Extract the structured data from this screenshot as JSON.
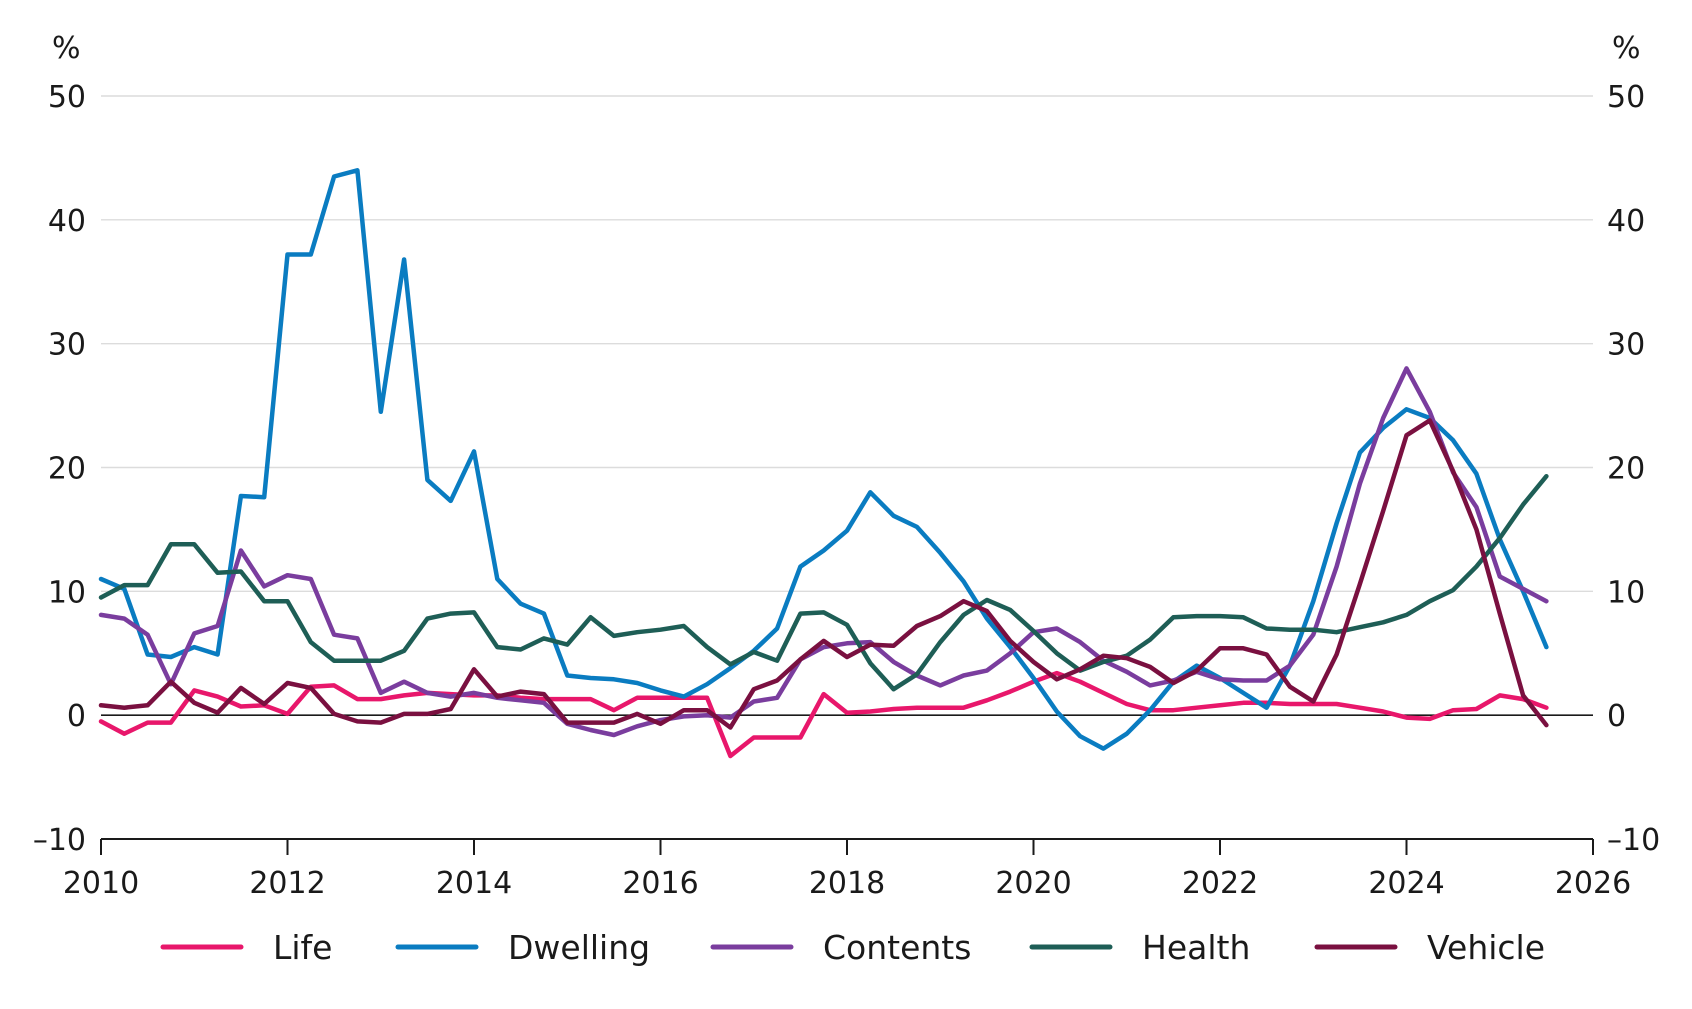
{
  "chart_data": {
    "type": "line",
    "title": "",
    "xlabel": "",
    "ylabel": "",
    "y_unit_left": "%",
    "y_unit_right": "%",
    "xlim": [
      2010,
      2026
    ],
    "ylim": [
      -10,
      50
    ],
    "x_ticks": [
      2010,
      2012,
      2014,
      2016,
      2018,
      2020,
      2022,
      2024,
      2026
    ],
    "x_tick_labels": [
      "2010",
      "2012",
      "2014",
      "2016",
      "2018",
      "2020",
      "2022",
      "2024",
      "2026"
    ],
    "y_ticks": [
      -10,
      0,
      10,
      20,
      30,
      40,
      50
    ],
    "y_tick_labels": [
      "–10",
      "0",
      "10",
      "20",
      "30",
      "40",
      "50"
    ],
    "grid": true,
    "legend_position": "bottom",
    "x": [
      2010.0,
      2010.25,
      2010.5,
      2010.75,
      2011.0,
      2011.25,
      2011.5,
      2011.75,
      2012.0,
      2012.25,
      2012.5,
      2012.75,
      2013.0,
      2013.25,
      2013.5,
      2013.75,
      2014.0,
      2014.25,
      2014.5,
      2014.75,
      2015.0,
      2015.25,
      2015.5,
      2015.75,
      2016.0,
      2016.25,
      2016.5,
      2016.75,
      2017.0,
      2017.25,
      2017.5,
      2017.75,
      2018.0,
      2018.25,
      2018.5,
      2018.75,
      2019.0,
      2019.25,
      2019.5,
      2019.75,
      2020.0,
      2020.25,
      2020.5,
      2020.75,
      2021.0,
      2021.25,
      2021.5,
      2021.75,
      2022.0,
      2022.25,
      2022.5,
      2022.75,
      2023.0,
      2023.25,
      2023.5,
      2023.75,
      2024.0,
      2024.25,
      2024.5,
      2024.75,
      2025.0,
      2025.25,
      2025.5
    ],
    "series": [
      {
        "name": "Life",
        "color": "#e8176b",
        "values": [
          -0.5,
          -1.5,
          -0.6,
          -0.6,
          2.0,
          1.5,
          0.7,
          0.8,
          0.1,
          2.3,
          2.4,
          1.3,
          1.3,
          1.6,
          1.8,
          1.7,
          1.6,
          1.6,
          1.4,
          1.3,
          1.3,
          1.3,
          0.4,
          1.4,
          1.4,
          1.4,
          1.4,
          -3.3,
          -1.8,
          -1.8,
          -1.8,
          1.7,
          0.2,
          0.3,
          0.5,
          0.6,
          0.6,
          0.6,
          1.2,
          1.9,
          2.7,
          3.4,
          2.7,
          1.8,
          0.9,
          0.4,
          0.4,
          0.6,
          0.8,
          1.0,
          1.0,
          0.9,
          0.9,
          0.9,
          0.6,
          0.3,
          -0.2,
          -0.3,
          0.4,
          0.5,
          1.6,
          1.3,
          0.6
        ]
      },
      {
        "name": "Dwelling",
        "color": "#0a7cc1",
        "values": [
          11.0,
          10.2,
          4.9,
          4.7,
          5.5,
          4.9,
          17.7,
          17.6,
          37.2,
          37.2,
          43.5,
          44.0,
          24.5,
          36.8,
          19.0,
          17.3,
          21.3,
          11.0,
          9.0,
          8.2,
          3.2,
          3.0,
          2.9,
          2.6,
          2.0,
          1.5,
          2.5,
          3.8,
          5.2,
          7.0,
          12.0,
          13.3,
          14.9,
          18.0,
          16.1,
          15.2,
          13.1,
          10.8,
          7.8,
          5.5,
          3.0,
          0.3,
          -1.7,
          -2.7,
          -1.5,
          0.4,
          2.7,
          4.0,
          3.0,
          1.8,
          0.6,
          4.0,
          9.2,
          15.5,
          21.2,
          23.2,
          24.7,
          24.0,
          22.2,
          19.5,
          14.2,
          10.0,
          5.5
        ]
      },
      {
        "name": "Contents",
        "color": "#7a3d9e",
        "values": [
          8.1,
          7.8,
          6.5,
          2.5,
          6.6,
          7.2,
          13.3,
          10.4,
          11.3,
          11.0,
          6.5,
          6.2,
          1.8,
          2.7,
          1.8,
          1.5,
          1.8,
          1.4,
          1.2,
          1.0,
          -0.7,
          -1.2,
          -1.6,
          -0.9,
          -0.4,
          -0.1,
          0.0,
          -0.2,
          1.1,
          1.4,
          4.5,
          5.5,
          5.8,
          5.9,
          4.3,
          3.2,
          2.4,
          3.2,
          3.6,
          5.0,
          6.7,
          7.0,
          5.9,
          4.4,
          3.5,
          2.4,
          2.8,
          3.5,
          2.9,
          2.8,
          2.8,
          4.0,
          6.5,
          12.0,
          18.7,
          24.0,
          28.0,
          24.5,
          19.6,
          16.8,
          11.2,
          10.2,
          9.2
        ]
      },
      {
        "name": "Health",
        "color": "#1e5e56",
        "values": [
          9.5,
          10.5,
          10.5,
          13.8,
          13.8,
          11.5,
          11.6,
          9.2,
          9.2,
          5.9,
          4.4,
          4.4,
          4.4,
          5.2,
          7.8,
          8.2,
          8.3,
          5.5,
          5.3,
          6.2,
          5.7,
          7.9,
          6.4,
          6.7,
          6.9,
          7.2,
          5.5,
          4.1,
          5.1,
          4.4,
          8.2,
          8.3,
          7.3,
          4.2,
          2.1,
          3.3,
          5.9,
          8.1,
          9.3,
          8.5,
          6.8,
          5.0,
          3.6,
          4.3,
          4.8,
          6.1,
          7.9,
          8.0,
          8.0,
          7.9,
          7.0,
          6.9,
          6.9,
          6.7,
          7.1,
          7.5,
          8.1,
          9.2,
          10.1,
          12.0,
          14.3,
          17.0,
          19.3
        ]
      },
      {
        "name": "Vehicle",
        "color": "#7a1040",
        "values": [
          0.8,
          0.6,
          0.8,
          2.7,
          1.0,
          0.2,
          2.2,
          0.9,
          2.6,
          2.2,
          0.1,
          -0.5,
          -0.6,
          0.1,
          0.1,
          0.5,
          3.7,
          1.5,
          1.9,
          1.7,
          -0.6,
          -0.6,
          -0.6,
          0.1,
          -0.7,
          0.4,
          0.4,
          -1.0,
          2.1,
          2.8,
          4.5,
          6.0,
          4.7,
          5.7,
          5.6,
          7.2,
          8.0,
          9.2,
          8.4,
          6.0,
          4.3,
          2.9,
          3.7,
          4.8,
          4.6,
          3.9,
          2.6,
          3.6,
          5.4,
          5.4,
          4.9,
          2.3,
          1.1,
          4.9,
          10.6,
          16.5,
          22.6,
          23.8,
          19.7,
          15.0,
          8.2,
          1.6,
          -0.8
        ]
      }
    ]
  }
}
